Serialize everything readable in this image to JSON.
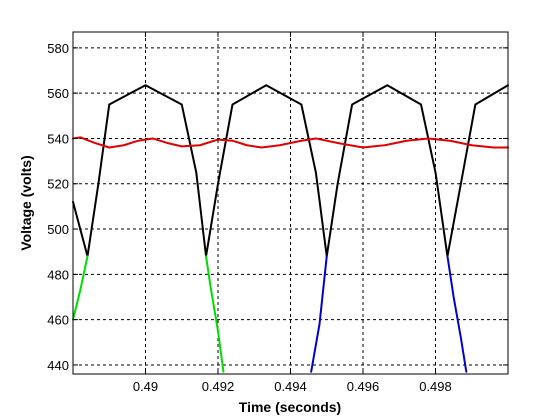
{
  "chart_data": {
    "type": "line",
    "title": "",
    "xlabel": "Time (seconds)",
    "ylabel": "Voltage (volts)",
    "xlim": [
      0.488,
      0.5
    ],
    "ylim": [
      436,
      587
    ],
    "x_ticks": [
      0.49,
      0.492,
      0.494,
      0.496,
      0.498
    ],
    "x_tick_labels": [
      "0.49",
      "0.492",
      "0.494",
      "0.496",
      "0.498"
    ],
    "y_ticks": [
      440,
      460,
      480,
      500,
      520,
      540,
      560,
      580
    ],
    "y_tick_labels": [
      "440",
      "460",
      "480",
      "500",
      "520",
      "540",
      "560",
      "580"
    ],
    "grid": true,
    "legend": "none",
    "series": [
      {
        "color": "#000000",
        "style": "rectified-sine",
        "points": [
          [
            0.488,
            512
          ],
          [
            0.4884,
            488
          ],
          [
            0.4887,
            520
          ],
          [
            0.489,
            555
          ],
          [
            0.49,
            563.5
          ],
          [
            0.491,
            555
          ],
          [
            0.4914,
            525
          ],
          [
            0.49167,
            488
          ],
          [
            0.492,
            520
          ],
          [
            0.4924,
            555
          ],
          [
            0.49333,
            563.5
          ],
          [
            0.4943,
            555
          ],
          [
            0.4947,
            525
          ],
          [
            0.495,
            488
          ],
          [
            0.4953,
            520
          ],
          [
            0.4957,
            555
          ],
          [
            0.49667,
            563.5
          ],
          [
            0.4976,
            555
          ],
          [
            0.498,
            525
          ],
          [
            0.49833,
            488
          ],
          [
            0.4987,
            520
          ],
          [
            0.4991,
            555
          ],
          [
            0.5,
            563.5
          ]
        ]
      },
      {
        "color": "#dd0000",
        "style": "ripple",
        "points": [
          [
            0.488,
            540
          ],
          [
            0.4882,
            540.5
          ],
          [
            0.4886,
            538
          ],
          [
            0.489,
            536
          ],
          [
            0.4894,
            537
          ],
          [
            0.4898,
            539
          ],
          [
            0.4902,
            540
          ],
          [
            0.4906,
            538
          ],
          [
            0.491,
            536.5
          ],
          [
            0.4915,
            537
          ],
          [
            0.492,
            539.5
          ],
          [
            0.4924,
            539
          ],
          [
            0.4928,
            537
          ],
          [
            0.4932,
            536
          ],
          [
            0.4937,
            537
          ],
          [
            0.4943,
            539
          ],
          [
            0.4947,
            540
          ],
          [
            0.4953,
            538
          ],
          [
            0.496,
            536
          ],
          [
            0.4966,
            537
          ],
          [
            0.4972,
            539
          ],
          [
            0.4978,
            540
          ],
          [
            0.4984,
            539
          ],
          [
            0.499,
            537
          ],
          [
            0.4996,
            536
          ],
          [
            0.5,
            536
          ]
        ]
      },
      {
        "color": "#00dd00",
        "style": "segments",
        "segments": [
          [
            [
              0.488,
              460
            ],
            [
              0.4882,
              473
            ],
            [
              0.4884,
              488
            ]
          ],
          [
            [
              0.49167,
              488
            ],
            [
              0.4918,
              474
            ],
            [
              0.492,
              455
            ],
            [
              0.49215,
              437
            ]
          ]
        ]
      },
      {
        "color": "#0000cc",
        "style": "segments",
        "segments": [
          [
            [
              0.49457,
              437
            ],
            [
              0.4948,
              458
            ],
            [
              0.495,
              488
            ]
          ],
          [
            [
              0.49833,
              488
            ],
            [
              0.4985,
              470
            ],
            [
              0.4987,
              452
            ],
            [
              0.49885,
              437
            ]
          ]
        ]
      }
    ]
  }
}
